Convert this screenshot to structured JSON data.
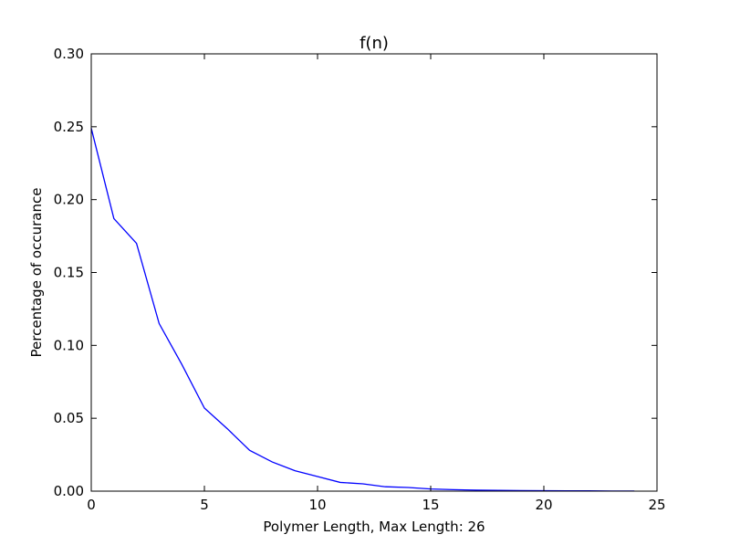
{
  "chart_data": {
    "type": "line",
    "title": "f(n)",
    "xlabel": "Polymer Length, Max Length: 26",
    "ylabel": "Percentage of occurance",
    "xlim": [
      0,
      25
    ],
    "ylim": [
      0,
      0.3
    ],
    "xticks": [
      0,
      5,
      10,
      15,
      20,
      25
    ],
    "xtick_labels": [
      "0",
      "5",
      "10",
      "15",
      "20",
      "25"
    ],
    "yticks": [
      0.0,
      0.05,
      0.1,
      0.15,
      0.2,
      0.25,
      0.3
    ],
    "ytick_labels": [
      "0.00",
      "0.05",
      "0.10",
      "0.15",
      "0.20",
      "0.25",
      "0.30"
    ],
    "grid": false,
    "series": [
      {
        "color": "#0000ff",
        "x": [
          0,
          1,
          2,
          3,
          4,
          5,
          6,
          7,
          8,
          9,
          10,
          11,
          12,
          13,
          14,
          15,
          16,
          17,
          18,
          19,
          20,
          21,
          22,
          23,
          24
        ],
        "y": [
          0.249,
          0.187,
          0.17,
          0.115,
          0.087,
          0.057,
          0.043,
          0.028,
          0.02,
          0.014,
          0.01,
          0.006,
          0.005,
          0.003,
          0.0025,
          0.0015,
          0.001,
          0.0007,
          0.0005,
          0.0004,
          0.0003,
          0.0002,
          0.0002,
          0.0001,
          0.0001
        ]
      }
    ]
  }
}
